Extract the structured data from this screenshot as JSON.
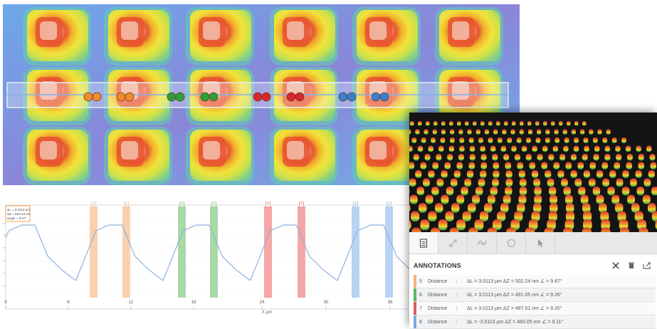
{
  "heatmap": {
    "rows": 3,
    "cols": 6,
    "marker_pairs": [
      {
        "color": "#f08a2c"
      },
      {
        "color": "#f08a2c"
      },
      {
        "color": "#2e9e3a"
      },
      {
        "color": "#2e9e3a"
      },
      {
        "color": "#d8262e"
      },
      {
        "color": "#d8262e"
      },
      {
        "color": "#3a7fd0"
      },
      {
        "color": "#3a7fd0"
      }
    ]
  },
  "profile": {
    "legend": [
      "ΔL = 3.0113 µm",
      "ΔZ = 502.24 nm",
      "angle = 9.47°"
    ],
    "x_ticks": [
      "0",
      "6",
      "12",
      "18",
      "24",
      "30",
      "36"
    ],
    "x_label": "X µm",
    "bands": [
      {
        "label": "5",
        "color": "#f5b27a"
      },
      {
        "label": "5",
        "color": "#f5b27a"
      },
      {
        "label": "6",
        "color": "#6fbf6a"
      },
      {
        "label": "6",
        "color": "#6fbf6a"
      },
      {
        "label": "7",
        "color": "#ef6b6b"
      },
      {
        "label": "7",
        "color": "#ef6b6b"
      },
      {
        "label": "8",
        "color": "#8ab8ea"
      },
      {
        "label": "8",
        "color": "#8ab8ea"
      }
    ]
  },
  "annotations": {
    "title": "ANNOTATIONS",
    "toolbar_icons": [
      "list-icon",
      "expand-icon",
      "profile-icon",
      "circle-icon",
      "cursor-icon"
    ],
    "rows": [
      {
        "num": "5",
        "type": "Distance",
        "value": "ΔL = 3.0113 µm ΔZ = 502.24 nm ∠ = 9.47°",
        "color": "#f5b27a"
      },
      {
        "num": "6",
        "type": "Distance",
        "value": "ΔL = 3.0113 µm ΔZ = 491.05 nm ∠ = 9.26°",
        "color": "#5cb85c"
      },
      {
        "num": "7",
        "type": "Distance",
        "value": "ΔL = 3.0113 µm ΔZ = 487.61 nm ∠ = 9.20°",
        "color": "#e05a5a"
      },
      {
        "num": "8",
        "type": "Distance",
        "value": "ΔL = -3.0113 µm ΔZ = 483.05 nm ∠ = 9.11°",
        "color": "#7aa9e0"
      }
    ]
  }
}
